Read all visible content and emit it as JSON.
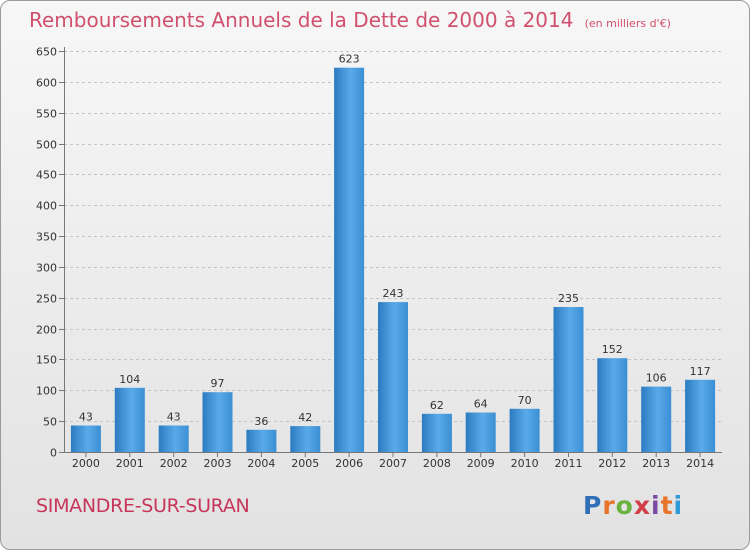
{
  "chart_data": {
    "type": "bar",
    "title": "Remboursements Annuels de la Dette de 2000 à 2014",
    "subtitle": "(en milliers d'€)",
    "categories": [
      "2000",
      "2001",
      "2002",
      "2003",
      "2004",
      "2005",
      "2006",
      "2007",
      "2008",
      "2009",
      "2010",
      "2011",
      "2012",
      "2013",
      "2014"
    ],
    "values": [
      43,
      104,
      43,
      97,
      36,
      42,
      623,
      243,
      62,
      64,
      70,
      235,
      152,
      106,
      117
    ],
    "ylim": [
      0,
      650
    ],
    "yticks": [
      0,
      50,
      100,
      150,
      200,
      250,
      300,
      350,
      400,
      450,
      500,
      550,
      600,
      650
    ],
    "grid": true,
    "bar_color": "#3a8fd4"
  },
  "footer": {
    "commune": "SIMANDRE-SUR-SURAN",
    "logo_text": "Proxiti",
    "logo_colors": [
      "#2f6fb5",
      "#e8742c",
      "#6ab23f",
      "#d33f49",
      "#7b4aa2",
      "#e8742c",
      "#2f9ad8"
    ]
  }
}
